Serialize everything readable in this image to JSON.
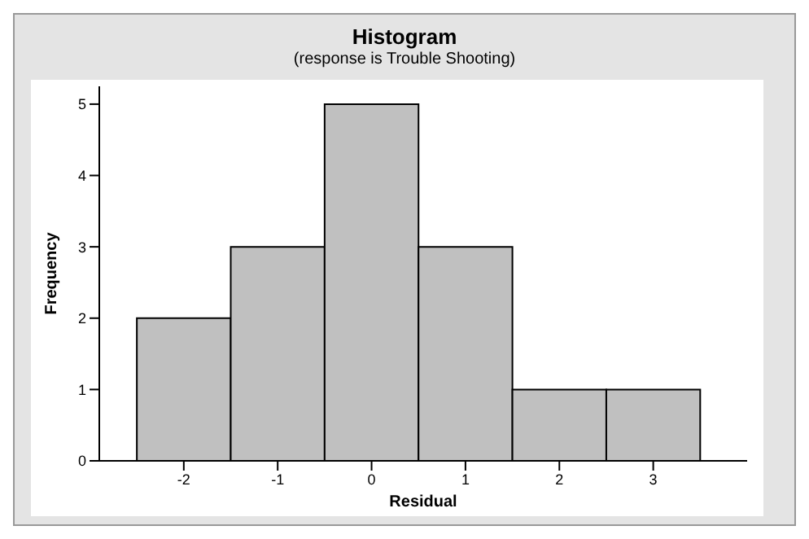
{
  "chart_data": {
    "type": "histogram",
    "title": "Histogram",
    "subtitle": "(response is Trouble Shooting)",
    "xlabel": "Residual",
    "ylabel": "Frequency",
    "bins": [
      -2.5,
      -1.5,
      -0.5,
      0.5,
      1.5,
      2.5,
      3.5
    ],
    "values": [
      2,
      3,
      5,
      3,
      1,
      1
    ],
    "color": "#c0c0c0",
    "xlim": [
      -2.9,
      4.0
    ],
    "xticks": [
      -2,
      -1,
      0,
      1,
      2,
      3
    ],
    "ylim": [
      0,
      5.25
    ],
    "yticks": [
      0,
      1,
      2,
      3,
      4,
      5
    ],
    "grid": false
  }
}
